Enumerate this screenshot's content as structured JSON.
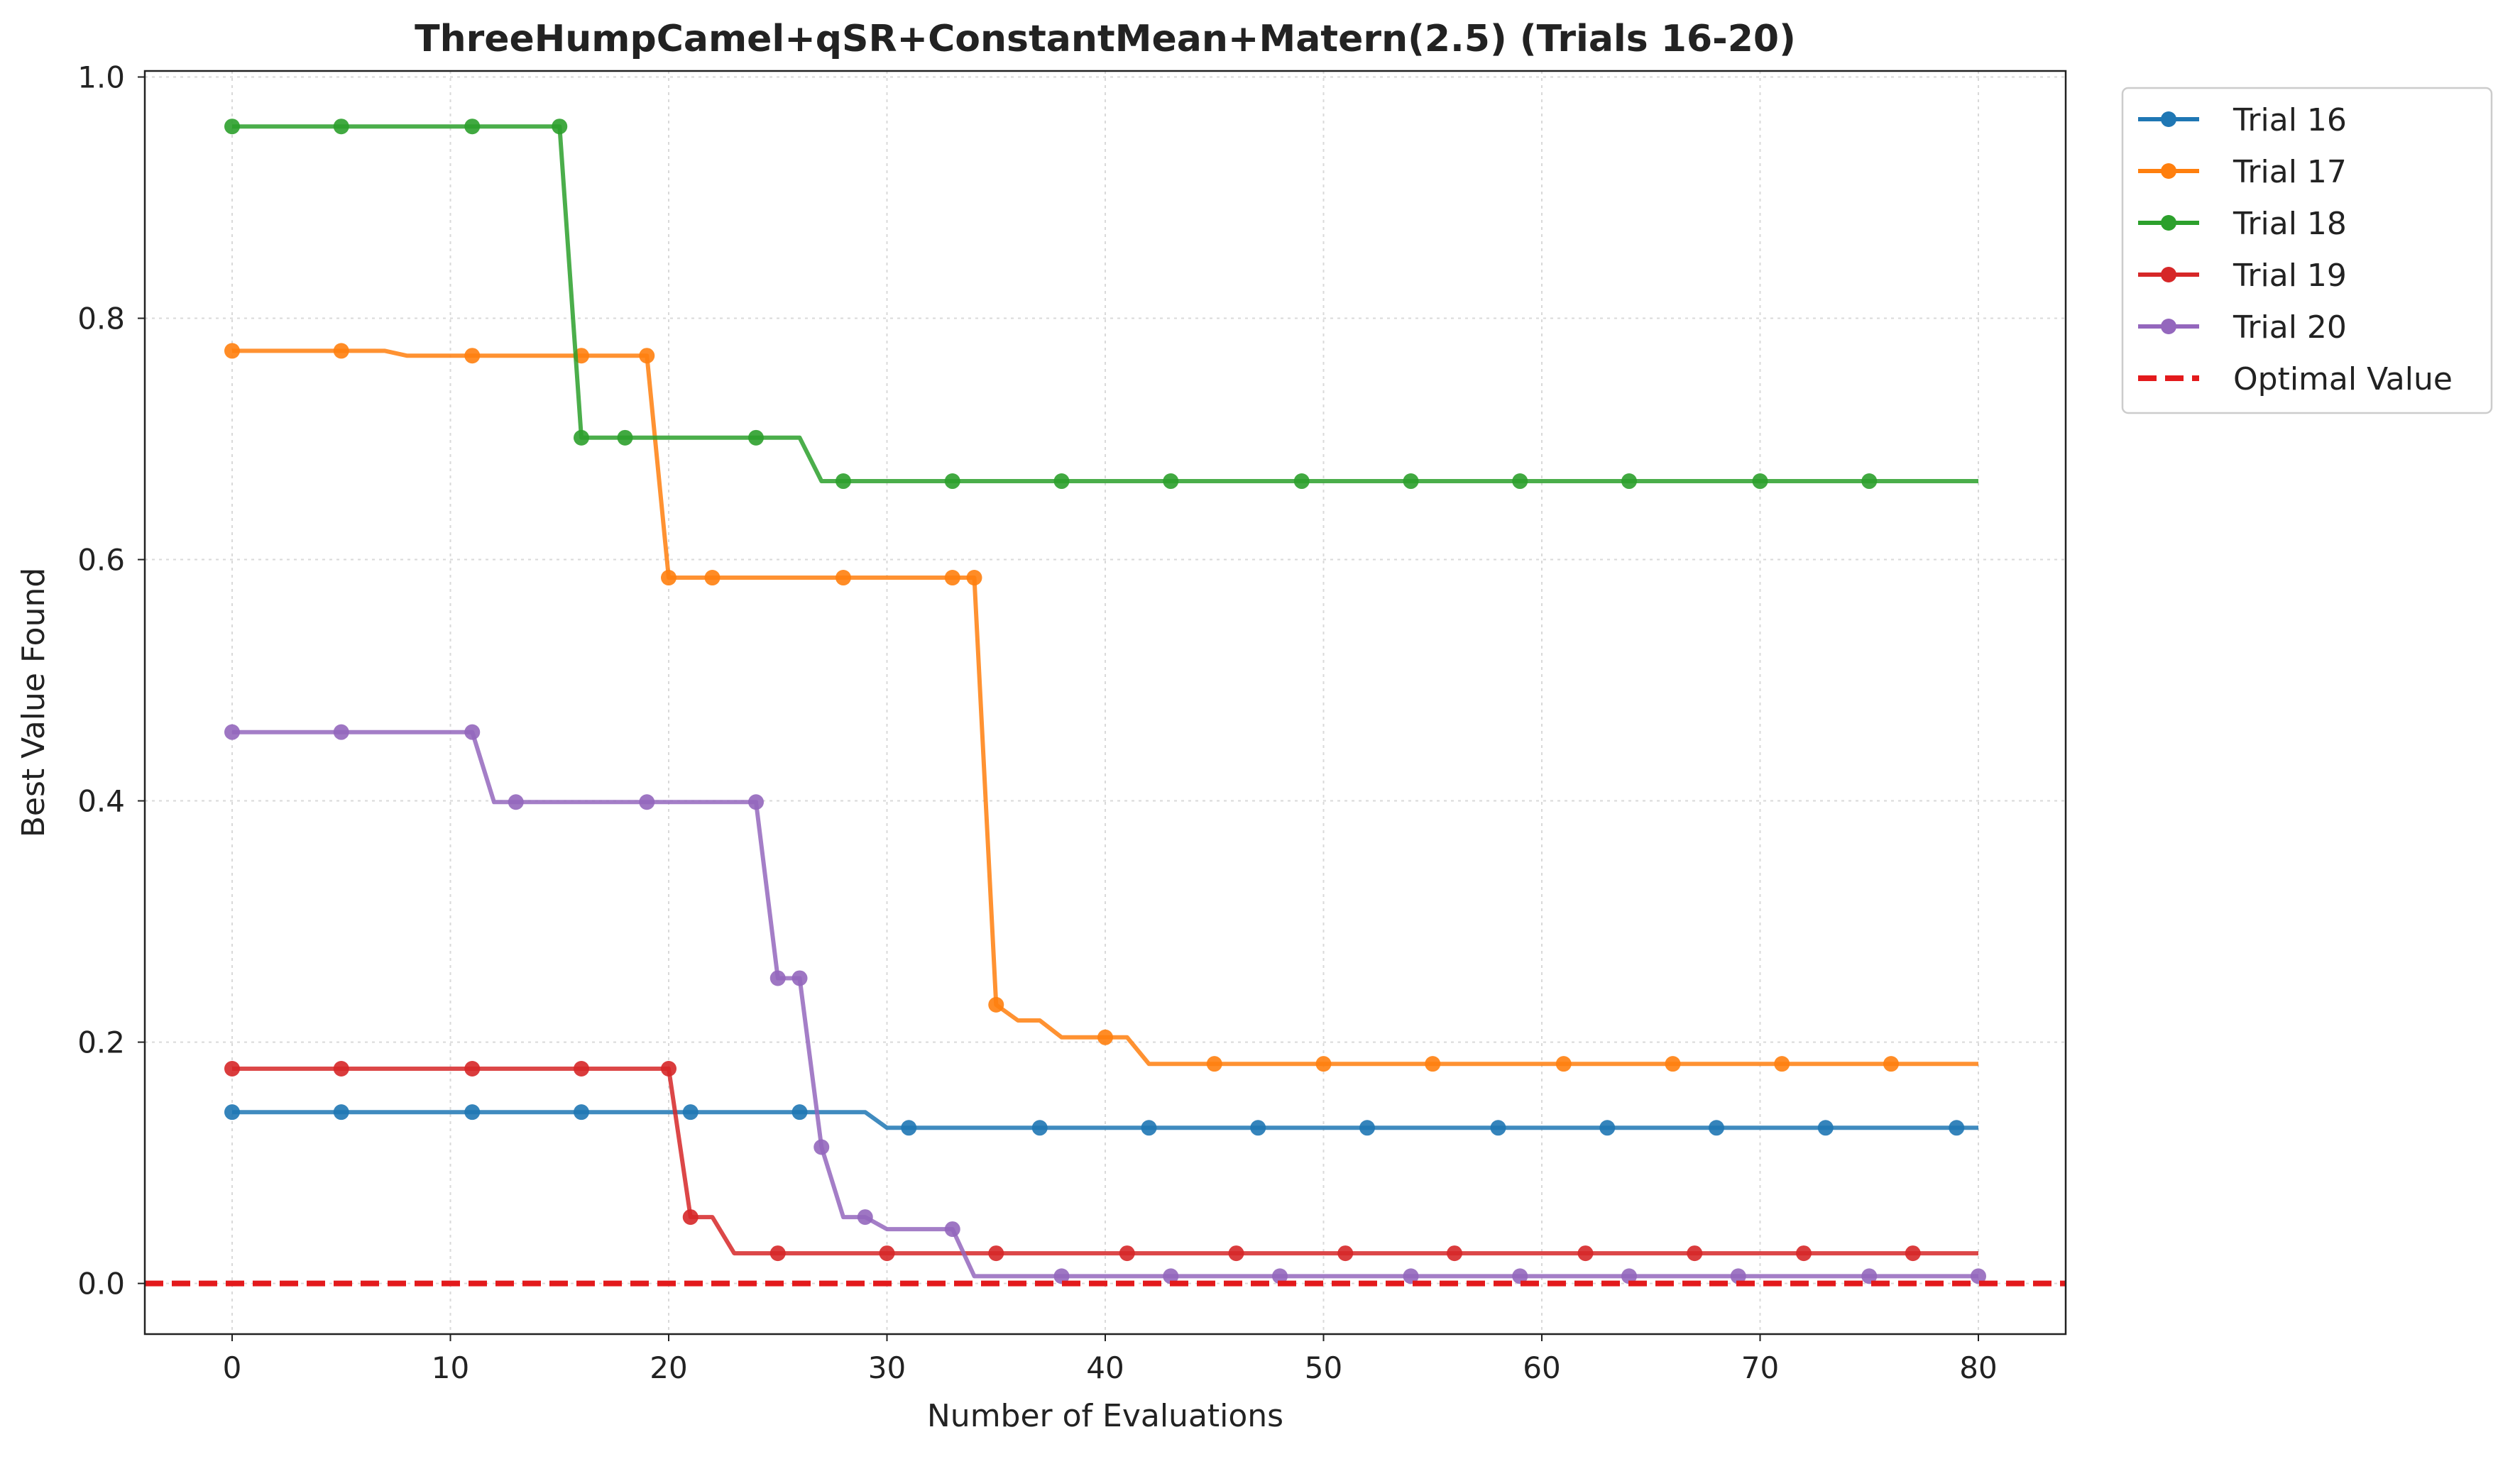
{
  "chart_data": {
    "type": "line",
    "title": "ThreeHumpCamel+qSR+ConstantMean+Matern(2.5) (Trials 16-20)",
    "xlabel": "Number of Evaluations",
    "ylabel": "Best Value Found",
    "xlim": [
      -4,
      84
    ],
    "ylim": [
      -0.042,
      1.005
    ],
    "xticks": [
      0,
      10,
      20,
      30,
      40,
      50,
      60,
      70,
      80
    ],
    "yticks": [
      0.0,
      0.2,
      0.4,
      0.6,
      0.8,
      1.0
    ],
    "xtick_labels": [
      "0",
      "10",
      "20",
      "30",
      "40",
      "50",
      "60",
      "70",
      "80"
    ],
    "ytick_labels": [
      "0.0",
      "0.2",
      "0.4",
      "0.6",
      "0.8",
      "1.0"
    ],
    "grid": true,
    "legend_position": "outside-top-right",
    "series": [
      {
        "name": "Trial 16",
        "color": "#1f77b4",
        "x": [
          0,
          5,
          11,
          16,
          21,
          26,
          29,
          30,
          31,
          37,
          42,
          47,
          52,
          58,
          63,
          68,
          73,
          79,
          80
        ],
        "y": [
          0.142,
          0.142,
          0.142,
          0.142,
          0.142,
          0.142,
          0.142,
          0.129,
          0.129,
          0.129,
          0.129,
          0.129,
          0.129,
          0.129,
          0.129,
          0.129,
          0.129,
          0.129,
          0.129
        ],
        "markers": [
          0,
          5,
          11,
          16,
          21,
          26,
          31,
          37,
          42,
          47,
          52,
          58,
          63,
          68,
          73,
          79
        ]
      },
      {
        "name": "Trial 17",
        "color": "#ff7f0e",
        "x": [
          0,
          5,
          7,
          8,
          11,
          16,
          19,
          20,
          22,
          28,
          33,
          34,
          35,
          36,
          37,
          38,
          40,
          41,
          42,
          45,
          50,
          55,
          61,
          66,
          71,
          76,
          80
        ],
        "y": [
          0.773,
          0.773,
          0.773,
          0.769,
          0.769,
          0.769,
          0.769,
          0.585,
          0.585,
          0.585,
          0.585,
          0.585,
          0.231,
          0.218,
          0.218,
          0.204,
          0.204,
          0.204,
          0.182,
          0.182,
          0.182,
          0.182,
          0.182,
          0.182,
          0.182,
          0.182,
          0.182
        ],
        "markers": [
          0,
          5,
          11,
          16,
          19,
          20,
          22,
          28,
          33,
          34,
          35,
          40,
          45,
          50,
          55,
          61,
          66,
          71,
          76
        ]
      },
      {
        "name": "Trial 18",
        "color": "#2ca02c",
        "x": [
          0,
          5,
          11,
          15,
          16,
          18,
          24,
          26,
          27,
          28,
          33,
          38,
          43,
          49,
          54,
          59,
          64,
          70,
          75,
          80
        ],
        "y": [
          0.959,
          0.959,
          0.959,
          0.959,
          0.701,
          0.701,
          0.701,
          0.701,
          0.665,
          0.665,
          0.665,
          0.665,
          0.665,
          0.665,
          0.665,
          0.665,
          0.665,
          0.665,
          0.665,
          0.665
        ],
        "markers": [
          0,
          5,
          11,
          15,
          16,
          18,
          24,
          28,
          33,
          38,
          43,
          49,
          54,
          59,
          64,
          70,
          75
        ]
      },
      {
        "name": "Trial 19",
        "color": "#d62728",
        "x": [
          0,
          5,
          11,
          16,
          20,
          21,
          22,
          23,
          25,
          30,
          35,
          41,
          46,
          51,
          56,
          62,
          67,
          72,
          77,
          80
        ],
        "y": [
          0.178,
          0.178,
          0.178,
          0.178,
          0.178,
          0.055,
          0.055,
          0.025,
          0.025,
          0.025,
          0.025,
          0.025,
          0.025,
          0.025,
          0.025,
          0.025,
          0.025,
          0.025,
          0.025,
          0.025
        ],
        "markers": [
          0,
          5,
          11,
          16,
          20,
          21,
          25,
          30,
          35,
          41,
          46,
          51,
          56,
          62,
          67,
          72,
          77
        ]
      },
      {
        "name": "Trial 20",
        "color": "#9467bd",
        "x": [
          0,
          5,
          11,
          12,
          13,
          19,
          24,
          25,
          26,
          27,
          28,
          29,
          30,
          33,
          34,
          38,
          43,
          48,
          54,
          59,
          64,
          69,
          75,
          80
        ],
        "y": [
          0.457,
          0.457,
          0.457,
          0.399,
          0.399,
          0.399,
          0.399,
          0.253,
          0.253,
          0.113,
          0.055,
          0.055,
          0.045,
          0.045,
          0.006,
          0.006,
          0.006,
          0.006,
          0.006,
          0.006,
          0.006,
          0.006,
          0.006,
          0.006
        ],
        "markers": [
          0,
          5,
          11,
          13,
          19,
          24,
          25,
          26,
          27,
          29,
          33,
          38,
          43,
          48,
          54,
          59,
          64,
          69,
          75,
          80
        ]
      }
    ],
    "reference_line": {
      "name": "Optimal Value",
      "y": 0.0,
      "color": "#e31a1c",
      "style": "dashed"
    }
  }
}
